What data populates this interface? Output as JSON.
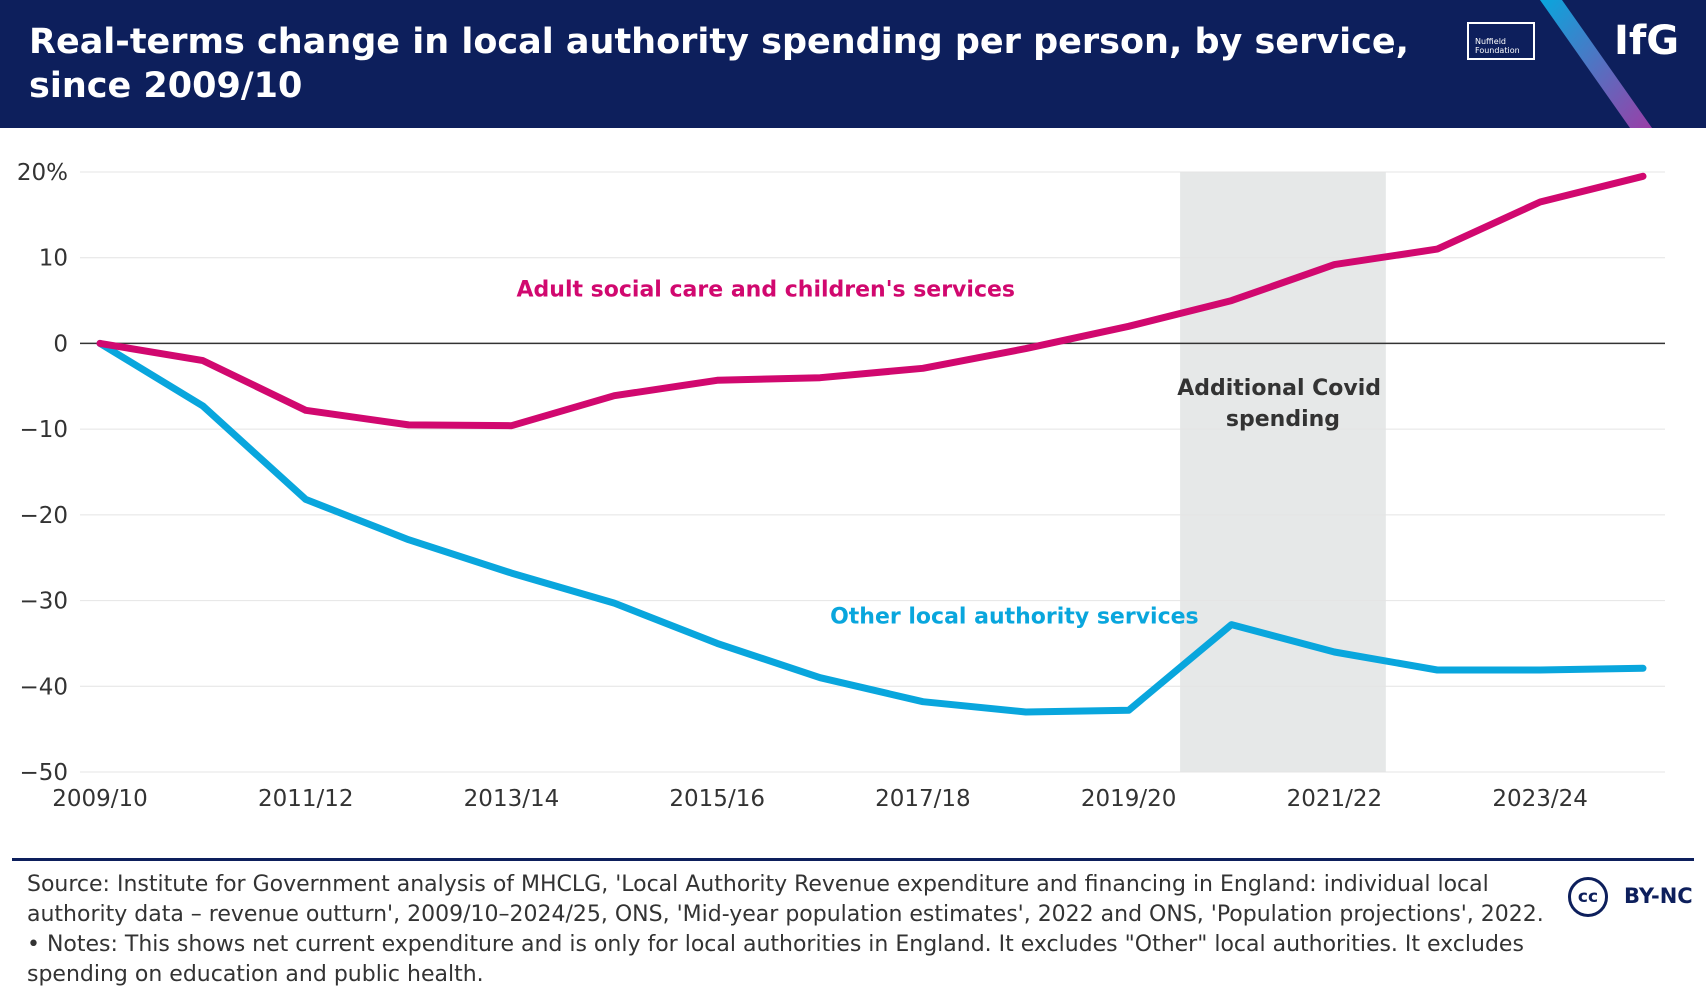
{
  "header": {
    "title": "Real-terms change in local authority spending per person, by service, since 2009/10",
    "partner_logo_text": "Nuffield Foundation",
    "brand": "IfG"
  },
  "colors": {
    "header_bg": "#0d1f5c",
    "adult_social_care": "#d1086f",
    "other_services": "#09a6dd",
    "covid_band": "#e6e8e8"
  },
  "chart_data": {
    "type": "line",
    "title": "Real-terms change in local authority spending per person, by service, since 2009/10",
    "xlabel": "",
    "ylabel": "",
    "x": [
      "2009/10",
      "2010/11",
      "2011/12",
      "2012/13",
      "2013/14",
      "2014/15",
      "2015/16",
      "2016/17",
      "2017/18",
      "2018/19",
      "2019/20",
      "2020/21",
      "2021/22",
      "2022/23",
      "2023/24",
      "2024/25"
    ],
    "x_tick_labels": [
      "2009/10",
      "2011/12",
      "2013/14",
      "2015/16",
      "2017/18",
      "2019/20",
      "2021/22",
      "2023/24"
    ],
    "y_ticks": [
      20,
      10,
      0,
      -10,
      -20,
      -30,
      -40,
      -50
    ],
    "y_tick_labels": [
      "20%",
      "10",
      "0",
      "−10",
      "−20",
      "−30",
      "−40",
      "−50"
    ],
    "ylim": [
      -50,
      20
    ],
    "grid": true,
    "series": [
      {
        "name": "Adult social care and children's services",
        "values": [
          0,
          -2,
          -7.8,
          -9.5,
          -9.6,
          -6.1,
          -4.3,
          -4.0,
          -2.9,
          -0.6,
          2.0,
          5.0,
          9.2,
          11.0,
          16.5,
          19.5
        ]
      },
      {
        "name": "Other local authority services",
        "values": [
          0,
          -7.3,
          -18.2,
          -22.9,
          -26.8,
          -30.3,
          -35.0,
          -39.0,
          -41.8,
          -43.0,
          -42.8,
          -32.8,
          -36.0,
          -38.1,
          -38.1,
          -37.9
        ]
      }
    ],
    "annotations": [
      {
        "text_lines": [
          "Additional Covid",
          "spending"
        ],
        "x_range": [
          "2020/21",
          "2021/22"
        ]
      }
    ]
  },
  "footer": {
    "source": "Source: Institute for Government analysis of MHCLG, 'Local Authority Revenue expenditure and financing in England: individual local authority data – revenue outturn', 2009/10–2024/25, ONS, 'Mid-year population estimates', 2022 and ONS, 'Population projections', 2022. • Notes: This shows net current expenditure and is only for local authorities in England. It excludes \"Other\" local authorities. It excludes spending on education and public health.",
    "cc_icon_text": "cc",
    "license": "BY-NC"
  }
}
